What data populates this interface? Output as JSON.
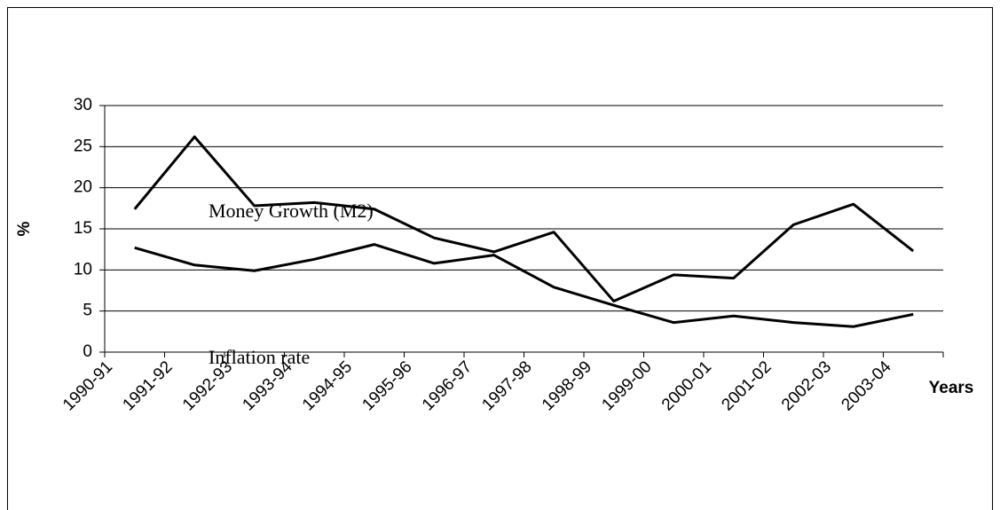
{
  "chart_data": {
    "type": "line",
    "categories": [
      "1990-91",
      "1991-92",
      "1992-93",
      "1993-94",
      "1994-95",
      "1995-96",
      "1996-97",
      "1997-98",
      "1998-99",
      "1999-00",
      "2000-01",
      "2001-02",
      "2002-03",
      "2003-04"
    ],
    "series": [
      {
        "name": "Money Growth (M2)",
        "color": "#000000",
        "values": [
          17.4,
          26.2,
          17.8,
          18.2,
          17.4,
          13.9,
          12.2,
          14.6,
          6.2,
          9.4,
          9.0,
          15.5,
          18.0,
          12.3
        ]
      },
      {
        "name": "Inflation rate",
        "color": "#000000",
        "values": [
          12.7,
          10.6,
          9.9,
          11.3,
          13.1,
          10.8,
          11.8,
          7.9,
          5.7,
          3.6,
          4.4,
          3.6,
          3.1,
          4.6
        ]
      }
    ],
    "y_label": "%",
    "x_label": "Years",
    "ylim": [
      0,
      30
    ],
    "yticks": [
      0,
      5,
      10,
      15,
      20,
      25,
      30
    ],
    "grid": true
  }
}
